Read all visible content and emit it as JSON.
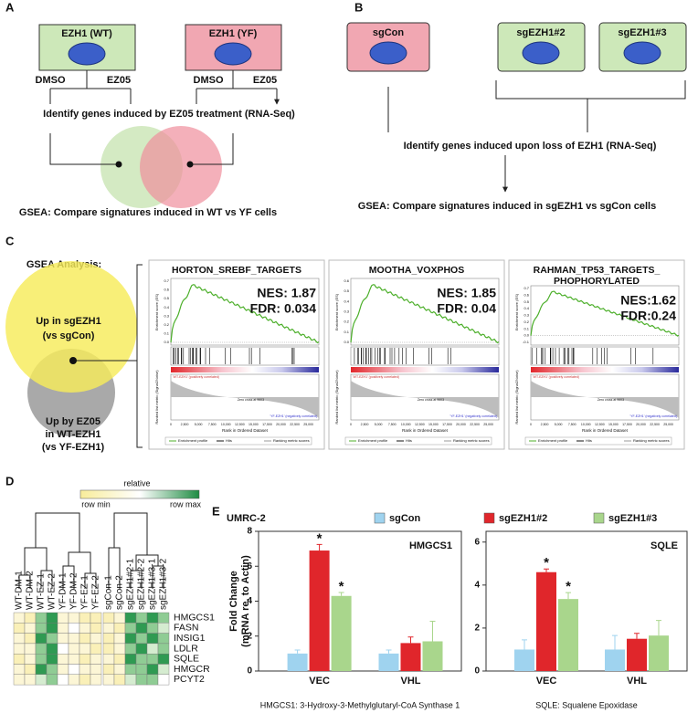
{
  "panel_a": {
    "letter": "A",
    "wt": "EZH1 (WT)",
    "yf": "EZH1 (YF)",
    "dmso": "DMSO",
    "ez05": "EZ05",
    "identify": "Identify genes induced by EZ05 treatment (RNA-Seq)",
    "gsea": "GSEA: Compare signatures induced in WT vs YF cells"
  },
  "panel_b": {
    "letter": "B",
    "sgcon": "sgCon",
    "sg2": "sgEZH1#2",
    "sg3": "sgEZH1#3",
    "identify": "Identify genes induced upon loss of EZH1 (RNA-Seq)",
    "gsea": "GSEA: Compare signatures induced in sgEZH1 vs sgCon cells"
  },
  "panel_c": {
    "letter": "C",
    "heading": "GSEA Analysis:",
    "up_sg": [
      "Up in sgEZH1",
      "(vs sgCon)"
    ],
    "up_ez": [
      "Up by EZ05",
      "in WT-EZH1",
      "(vs YF-EZH1)"
    ],
    "es_axis": "Enrichment score (ES)",
    "metric_axis": "Ranked list metric (Signal2Noise)",
    "rank_axis": "Rank in Ordered Dataset",
    "pos_label": "'WT-EZH1' (positively correlated)",
    "zero_cross": "Zero cross at 9603",
    "neg_label": "'YF-EZH1' (negatively correlated)",
    "legend": [
      "Enrichment profile",
      "Hits",
      "Ranking metric scores"
    ],
    "xticks": [
      "0",
      "2,500",
      "5,000",
      "7,500",
      "10,000",
      "12,500",
      "15,000",
      "17,500",
      "20,000",
      "22,500",
      "25,000"
    ],
    "plots": [
      {
        "title": [
          "HORTON_SREBF_TARGETS"
        ],
        "nes": "NES: 1.87",
        "fdr": "FDR: 0.034",
        "yticks": [
          "0.7",
          "0.6",
          "0.5",
          "0.4",
          "0.3",
          "0.2",
          "0.1",
          "0.0"
        ]
      },
      {
        "title": [
          "MOOTHA_VOXPHOS"
        ],
        "nes": "NES: 1.85",
        "fdr": "FDR: 0.04",
        "yticks": [
          "0.6",
          "0.5",
          "0.4",
          "0.3",
          "0.2",
          "0.1",
          "0.0"
        ]
      },
      {
        "title": [
          "RAHMAN_TP53_TARGETS_",
          "PHOPHORYLATED"
        ],
        "nes": "NES:1.62",
        "fdr": "FDR:0.24",
        "yticks": [
          "0.7",
          "0.6",
          "0.5",
          "0.4",
          "0.3",
          "0.2",
          "0.1",
          "0.0",
          "-0.1"
        ]
      }
    ]
  },
  "panel_d": {
    "letter": "D",
    "relative": "relative",
    "row_min": "row min",
    "row_max": "row max",
    "samples_left": [
      "WT-DM-1",
      "WT-DM-2",
      "WT-EZ-1",
      "WT-EZ-2",
      "YF-DM-1",
      "YF-DM-2",
      "YF-EZ-1",
      "YF-EZ-2"
    ],
    "samples_right": [
      "sgCon-1",
      "sgCon-2",
      "sgEZH1#2-1",
      "sgEZH1#2-2",
      "sgEZH1#3-1",
      "sgEZH1#3-2"
    ],
    "genes": [
      "HMGCS1",
      "FASN",
      "INSIG1",
      "LDLR",
      "SQLE",
      "HMGCR",
      "PCYT2"
    ],
    "colors_left": [
      [
        "#fcf6d6",
        "#faf0b8",
        "#8fcc94",
        "#2f9a52",
        "#fcf6d6",
        "#fcf6d6",
        "#faf0b8",
        "#faf0b8"
      ],
      [
        "#faf0b8",
        "#fcf6d6",
        "#8fcc94",
        "#2f9a52",
        "#fcf6d6",
        "#ffffff",
        "#fcf6d6",
        "#faf0b8"
      ],
      [
        "#fcf6d6",
        "#faf0b8",
        "#2f9a52",
        "#8fcc94",
        "#fcf6d6",
        "#fcf6d6",
        "#faf0b8",
        "#fcf6d6"
      ],
      [
        "#fcf6d6",
        "#fcf6d6",
        "#8fcc94",
        "#2f9a52",
        "#ffffff",
        "#fcf6d6",
        "#fcf6d6",
        "#faf0b8"
      ],
      [
        "#faf0b8",
        "#fcf6d6",
        "#8fcc94",
        "#2f9a52",
        "#fcf6d6",
        "#fcf6d6",
        "#faf0b8",
        "#fcf6d6"
      ],
      [
        "#fcf6d6",
        "#faf0b8",
        "#2f9a52",
        "#8fcc94",
        "#fcf6d6",
        "#ffffff",
        "#fcf6d6",
        "#fcf6d6"
      ],
      [
        "#fcf6d6",
        "#fcf6d6",
        "#d5ecd0",
        "#8fcc94",
        "#ffffff",
        "#fcf6d6",
        "#faf0b8",
        "#fcf6d6"
      ]
    ],
    "colors_right": [
      [
        "#faf0b8",
        "#fcf6d6",
        "#2f9a52",
        "#8fcc94",
        "#2f9a52",
        "#8fcc94"
      ],
      [
        "#fcf6d6",
        "#faf0b8",
        "#8fcc94",
        "#2f9a52",
        "#8fcc94",
        "#d5ecd0"
      ],
      [
        "#faf0b8",
        "#fcf6d6",
        "#2f9a52",
        "#8fcc94",
        "#2f9a52",
        "#8fcc94"
      ],
      [
        "#faf0b8",
        "#fcf6d6",
        "#8fcc94",
        "#2f9a52",
        "#d5ecd0",
        "#8fcc94"
      ],
      [
        "#fcf6d6",
        "#faf0b8",
        "#2f9a52",
        "#8fcc94",
        "#8fcc94",
        "#2f9a52"
      ],
      [
        "#faf0b8",
        "#fcf6d6",
        "#8fcc94",
        "#8fcc94",
        "#2f9a52",
        "#d5ecd0"
      ],
      [
        "#fcf6d6",
        "#faf0b8",
        "#d5ecd0",
        "#8fcc94",
        "#8fcc94",
        "#ffffff"
      ]
    ]
  },
  "panel_e": {
    "letter": "E",
    "cell_line": "UMRC-2"
  },
  "chart_data": [
    {
      "type": "bar",
      "title": "HMGCS1",
      "ylabel": [
        "Fold Change",
        "(mRNA re. to Actin)"
      ],
      "caption": "HMGCS1: 3-Hydroxy-3-Methylglutaryl-CoA Synthase 1",
      "categories": [
        "VEC",
        "VHL"
      ],
      "ylim": [
        0,
        8
      ],
      "yticks": [
        0,
        2,
        4,
        6,
        8
      ],
      "series": [
        {
          "name": "sgCon",
          "color": "#9fd3ef",
          "values": [
            1.0,
            1.0
          ],
          "errors": [
            0.2,
            0.2
          ],
          "stars": [
            null,
            null
          ]
        },
        {
          "name": "sgEZH1#2",
          "color": "#e0262b",
          "values": [
            6.9,
            1.6
          ],
          "errors": [
            0.35,
            0.35
          ],
          "stars": [
            "*",
            null
          ]
        },
        {
          "name": "sgEZH1#3",
          "color": "#a9d68c",
          "values": [
            4.3,
            1.7
          ],
          "errors": [
            0.2,
            1.15
          ],
          "stars": [
            "*",
            null
          ]
        }
      ]
    },
    {
      "type": "bar",
      "title": "SQLE",
      "caption": "SQLE: Squalene Epoxidase",
      "categories": [
        "VEC",
        "VHL"
      ],
      "ylim": [
        0,
        6.5
      ],
      "yticks": [
        0,
        2,
        4,
        6
      ],
      "series": [
        {
          "name": "sgCon",
          "color": "#9fd3ef",
          "values": [
            1.0,
            1.0
          ],
          "errors": [
            0.45,
            0.65
          ],
          "stars": [
            null,
            null
          ]
        },
        {
          "name": "sgEZH1#2",
          "color": "#e0262b",
          "values": [
            4.6,
            1.5
          ],
          "errors": [
            0.15,
            0.25
          ],
          "stars": [
            "*",
            null
          ]
        },
        {
          "name": "sgEZH1#3",
          "color": "#a9d68c",
          "values": [
            3.35,
            1.65
          ],
          "errors": [
            0.3,
            0.7
          ],
          "stars": [
            "*",
            null
          ]
        }
      ]
    }
  ]
}
